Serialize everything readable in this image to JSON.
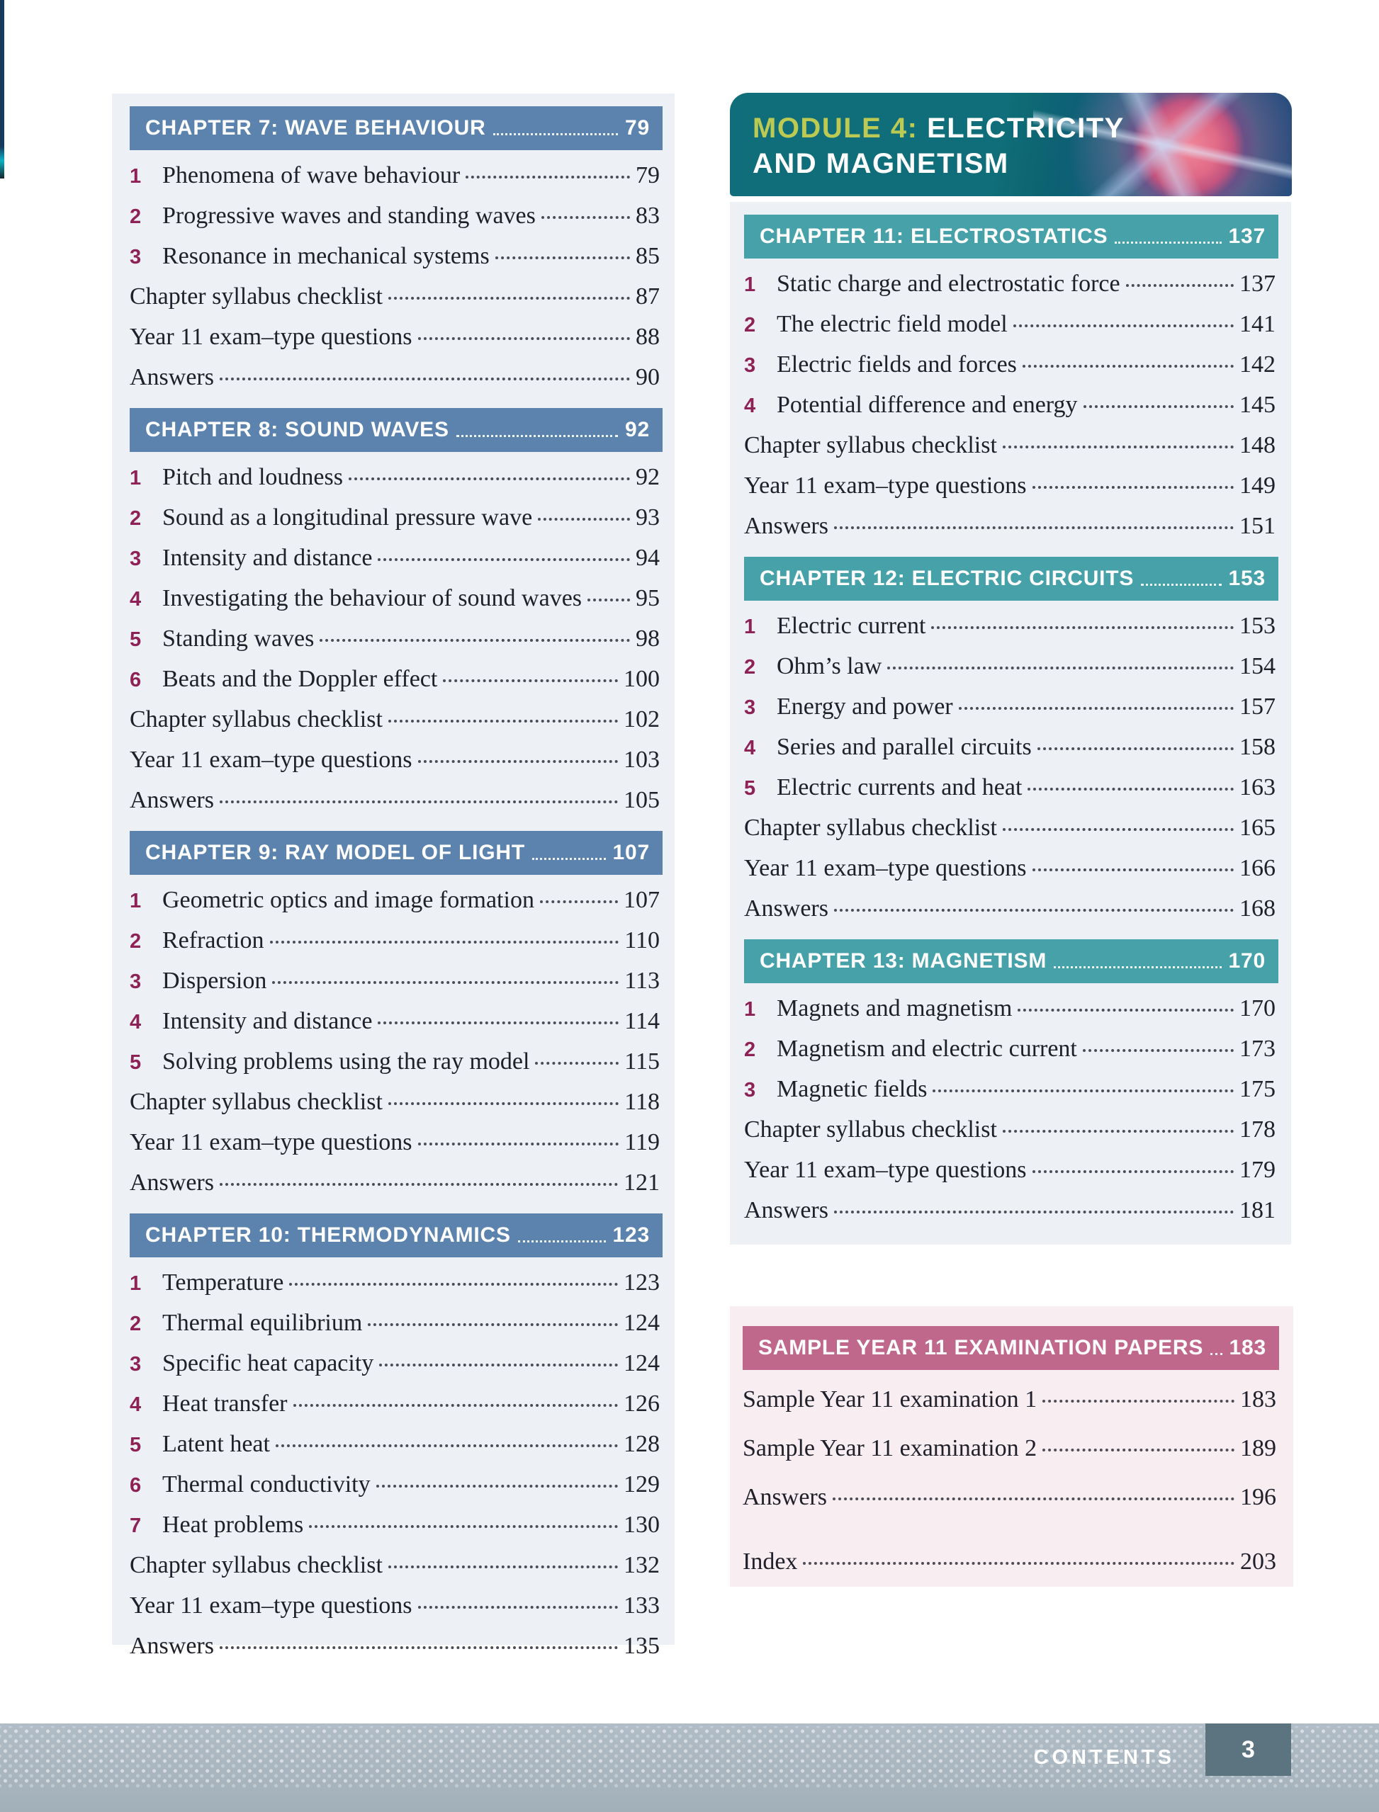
{
  "colors": {
    "blue_bar": "#5b83ad",
    "teal_bar": "#47a1a9",
    "banner_teal": "#0f6e79",
    "pink_bar": "#c0688c",
    "maroon": "#8e2155",
    "panel_bg": "#edf1f5",
    "sample_bg": "#f8eef2",
    "footer_band": "#a9b6c0",
    "footer_box": "#5c7380",
    "module_prefix": "#bcca54"
  },
  "module_banner": {
    "prefix": "MODULE 4:",
    "title_line1": "ELECTRICITY",
    "title_line2": "AND MAGNETISM",
    "image": "plasma-ball-photo"
  },
  "left_column": {
    "sections": [
      {
        "heading": "CHAPTER 7: WAVE BEHAVIOUR",
        "page": "79",
        "theme": "blue",
        "items": [
          {
            "num": "1",
            "label": "Phenomena of wave behaviour",
            "page": "79"
          },
          {
            "num": "2",
            "label": "Progressive waves and standing waves",
            "page": "83"
          },
          {
            "num": "3",
            "label": "Resonance in mechanical systems",
            "page": "85"
          },
          {
            "num": "",
            "label": "Chapter syllabus checklist",
            "page": "87"
          },
          {
            "num": "",
            "label": "Year 11 exam–type questions",
            "page": "88"
          },
          {
            "num": "",
            "label": "Answers",
            "page": "90"
          }
        ]
      },
      {
        "heading": "CHAPTER 8: SOUND WAVES",
        "page": "92",
        "theme": "blue",
        "items": [
          {
            "num": "1",
            "label": "Pitch and loudness",
            "page": "92"
          },
          {
            "num": "2",
            "label": "Sound as a longitudinal pressure wave",
            "page": "93"
          },
          {
            "num": "3",
            "label": "Intensity and distance",
            "page": "94"
          },
          {
            "num": "4",
            "label": "Investigating the behaviour of sound waves",
            "page": "95"
          },
          {
            "num": "5",
            "label": "Standing waves",
            "page": "98"
          },
          {
            "num": "6",
            "label": "Beats and the Doppler effect",
            "page": "100"
          },
          {
            "num": "",
            "label": "Chapter syllabus checklist",
            "page": "102"
          },
          {
            "num": "",
            "label": "Year 11 exam–type questions",
            "page": "103"
          },
          {
            "num": "",
            "label": "Answers",
            "page": "105"
          }
        ]
      },
      {
        "heading": "CHAPTER 9: RAY MODEL OF LIGHT",
        "page": "107",
        "theme": "blue",
        "items": [
          {
            "num": "1",
            "label": "Geometric optics and image formation",
            "page": "107"
          },
          {
            "num": "2",
            "label": "Refraction",
            "page": "110"
          },
          {
            "num": "3",
            "label": "Dispersion",
            "page": "113"
          },
          {
            "num": "4",
            "label": "Intensity and distance",
            "page": "114"
          },
          {
            "num": "5",
            "label": "Solving problems using the ray model",
            "page": "115"
          },
          {
            "num": "",
            "label": "Chapter syllabus checklist",
            "page": "118"
          },
          {
            "num": "",
            "label": "Year 11 exam–type questions",
            "page": "119"
          },
          {
            "num": "",
            "label": "Answers",
            "page": "121"
          }
        ]
      },
      {
        "heading": "CHAPTER 10: THERMODYNAMICS",
        "page": "123",
        "theme": "blue",
        "items": [
          {
            "num": "1",
            "label": "Temperature",
            "page": "123"
          },
          {
            "num": "2",
            "label": "Thermal equilibrium",
            "page": "124"
          },
          {
            "num": "3",
            "label": "Specific heat capacity",
            "page": "124"
          },
          {
            "num": "4",
            "label": "Heat transfer",
            "page": "126"
          },
          {
            "num": "5",
            "label": "Latent heat",
            "page": "128"
          },
          {
            "num": "6",
            "label": "Thermal conductivity",
            "page": "129"
          },
          {
            "num": "7",
            "label": "Heat problems",
            "page": "130"
          },
          {
            "num": "",
            "label": "Chapter syllabus checklist",
            "page": "132"
          },
          {
            "num": "",
            "label": "Year 11 exam–type questions",
            "page": "133"
          },
          {
            "num": "",
            "label": "Answers",
            "page": "135"
          }
        ]
      }
    ]
  },
  "right_column": {
    "sections": [
      {
        "heading": "CHAPTER 11: ELECTROSTATICS",
        "page": "137",
        "theme": "teal",
        "items": [
          {
            "num": "1",
            "label": "Static charge and electrostatic force",
            "page": "137"
          },
          {
            "num": "2",
            "label": "The electric field model",
            "page": "141"
          },
          {
            "num": "3",
            "label": "Electric fields and forces",
            "page": "142"
          },
          {
            "num": "4",
            "label": "Potential difference and energy",
            "page": "145"
          },
          {
            "num": "",
            "label": "Chapter syllabus checklist",
            "page": "148"
          },
          {
            "num": "",
            "label": "Year 11 exam–type questions",
            "page": "149"
          },
          {
            "num": "",
            "label": "Answers",
            "page": "151"
          }
        ]
      },
      {
        "heading": "CHAPTER 12: ELECTRIC CIRCUITS",
        "page": "153",
        "theme": "teal",
        "items": [
          {
            "num": "1",
            "label": "Electric current",
            "page": "153"
          },
          {
            "num": "2",
            "label": "Ohm’s law",
            "page": "154"
          },
          {
            "num": "3",
            "label": "Energy and power",
            "page": "157"
          },
          {
            "num": "4",
            "label": "Series and parallel circuits",
            "page": "158"
          },
          {
            "num": "5",
            "label": "Electric currents and heat",
            "page": "163"
          },
          {
            "num": "",
            "label": "Chapter syllabus checklist",
            "page": "165"
          },
          {
            "num": "",
            "label": "Year 11 exam–type questions",
            "page": "166"
          },
          {
            "num": "",
            "label": "Answers",
            "page": "168"
          }
        ]
      },
      {
        "heading": "CHAPTER 13: MAGNETISM",
        "page": "170",
        "theme": "teal",
        "items": [
          {
            "num": "1",
            "label": "Magnets and magnetism",
            "page": "170"
          },
          {
            "num": "2",
            "label": "Magnetism and electric current",
            "page": "173"
          },
          {
            "num": "3",
            "label": "Magnetic fields",
            "page": "175"
          },
          {
            "num": "",
            "label": "Chapter syllabus checklist",
            "page": "178"
          },
          {
            "num": "",
            "label": "Year 11 exam–type questions",
            "page": "179"
          },
          {
            "num": "",
            "label": "Answers",
            "page": "181"
          }
        ]
      }
    ]
  },
  "sample_section": {
    "heading": "SAMPLE YEAR 11 EXAMINATION PAPERS",
    "page": "183",
    "theme": "pink",
    "items": [
      {
        "num": "",
        "label": "Sample Year 11 examination 1",
        "page": "183"
      },
      {
        "num": "",
        "label": "Sample Year 11 examination 2",
        "page": "189"
      },
      {
        "num": "",
        "label": "Answers",
        "page": "196"
      }
    ],
    "index_item": {
      "label": "Index",
      "page": "203"
    }
  },
  "footer": {
    "label": "CONTENTS",
    "page_number": "3"
  }
}
